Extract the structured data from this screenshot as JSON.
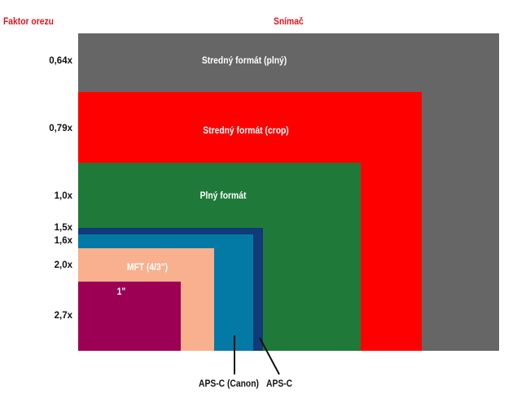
{
  "headers": {
    "left": "Faktor orezu",
    "right": "Snímač"
  },
  "sensors": [
    {
      "id": "medium-full",
      "factor": "0,64x",
      "label": "Stredný formát (plný)",
      "color": "#666666"
    },
    {
      "id": "medium-crop",
      "factor": "0,79x",
      "label": "Stredný formát (crop)",
      "color": "#fe0000"
    },
    {
      "id": "full-frame",
      "factor": "1,0x",
      "label": "Plný formát",
      "color": "#1f7a3a"
    },
    {
      "id": "aps-c",
      "factor": "1,5x",
      "label": "APS-C",
      "color": "#103a78"
    },
    {
      "id": "aps-c-canon",
      "factor": "1,6x",
      "label": "APS-C (Canon)",
      "color": "#037aa5"
    },
    {
      "id": "mft",
      "factor": "2,0x",
      "label": "MFT (4/3\")",
      "color": "#f8b08e"
    },
    {
      "id": "one-inch",
      "factor": "2,7x",
      "label": "1\"",
      "color": "#9c0055"
    }
  ]
}
